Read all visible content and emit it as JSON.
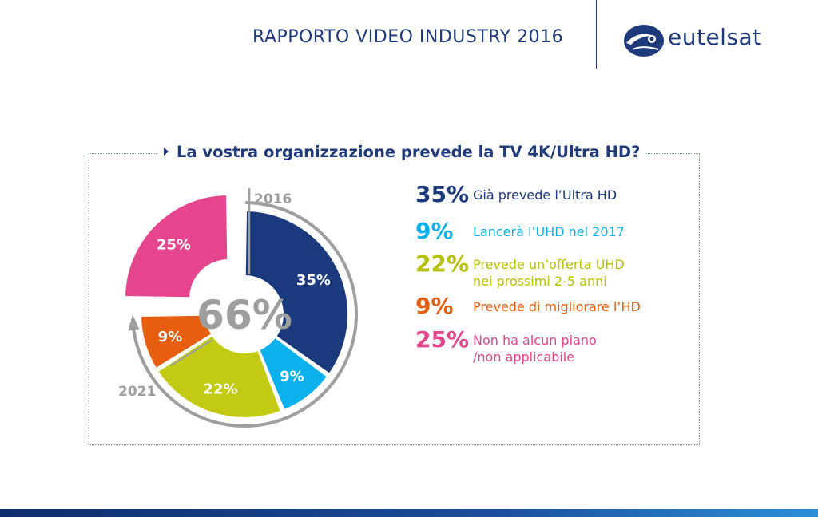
{
  "header": {
    "title": "RAPPORTO VIDEO INDUSTRY 2016",
    "brand": "eutelsat"
  },
  "chart_data": {
    "type": "pie",
    "title": "La vostra organizzazione prevede la TV 4K/Ultra HD?",
    "center_label": "66%",
    "timeline_start": "2016",
    "timeline_end": "2021",
    "slices": [
      {
        "value": 35,
        "label": "35%",
        "description": "Già prevede l’Ultra HD",
        "color": "#1b3a7d"
      },
      {
        "value": 9,
        "label": "9%",
        "description": "Lancerà l’UHD nel 2017",
        "color": "#0ab1ec"
      },
      {
        "value": 22,
        "label": "22%",
        "description": "Prevede un’offerta UHD nei prossimi 2-5 anni",
        "color": "#c2cb12"
      },
      {
        "value": 9,
        "label": "9%",
        "description": "Prevede di migliorare l’HD",
        "color": "#e85e0f"
      },
      {
        "value": 25,
        "label": "25%",
        "description": "Non ha alcun piano /non applicabile",
        "color": "#e4458c"
      }
    ]
  },
  "legend": [
    {
      "pct": "35%",
      "lines": [
        "Già prevede l’Ultra HD"
      ],
      "color": "#1b3a7d"
    },
    {
      "pct": "9%",
      "lines": [
        "Lancerà l’UHD nel 2017"
      ],
      "color": "#0ab1ec"
    },
    {
      "pct": "22%",
      "lines": [
        "Prevede un’offerta UHD",
        "nei prossimi 2-5 anni"
      ],
      "color": "#b5c000"
    },
    {
      "pct": "9%",
      "lines": [
        "Prevede di migliorare l’HD"
      ],
      "color": "#e85e0f"
    },
    {
      "pct": "25%",
      "lines": [
        "Non ha alcun piano",
        "/non applicabile"
      ],
      "color": "#e4458c"
    }
  ]
}
